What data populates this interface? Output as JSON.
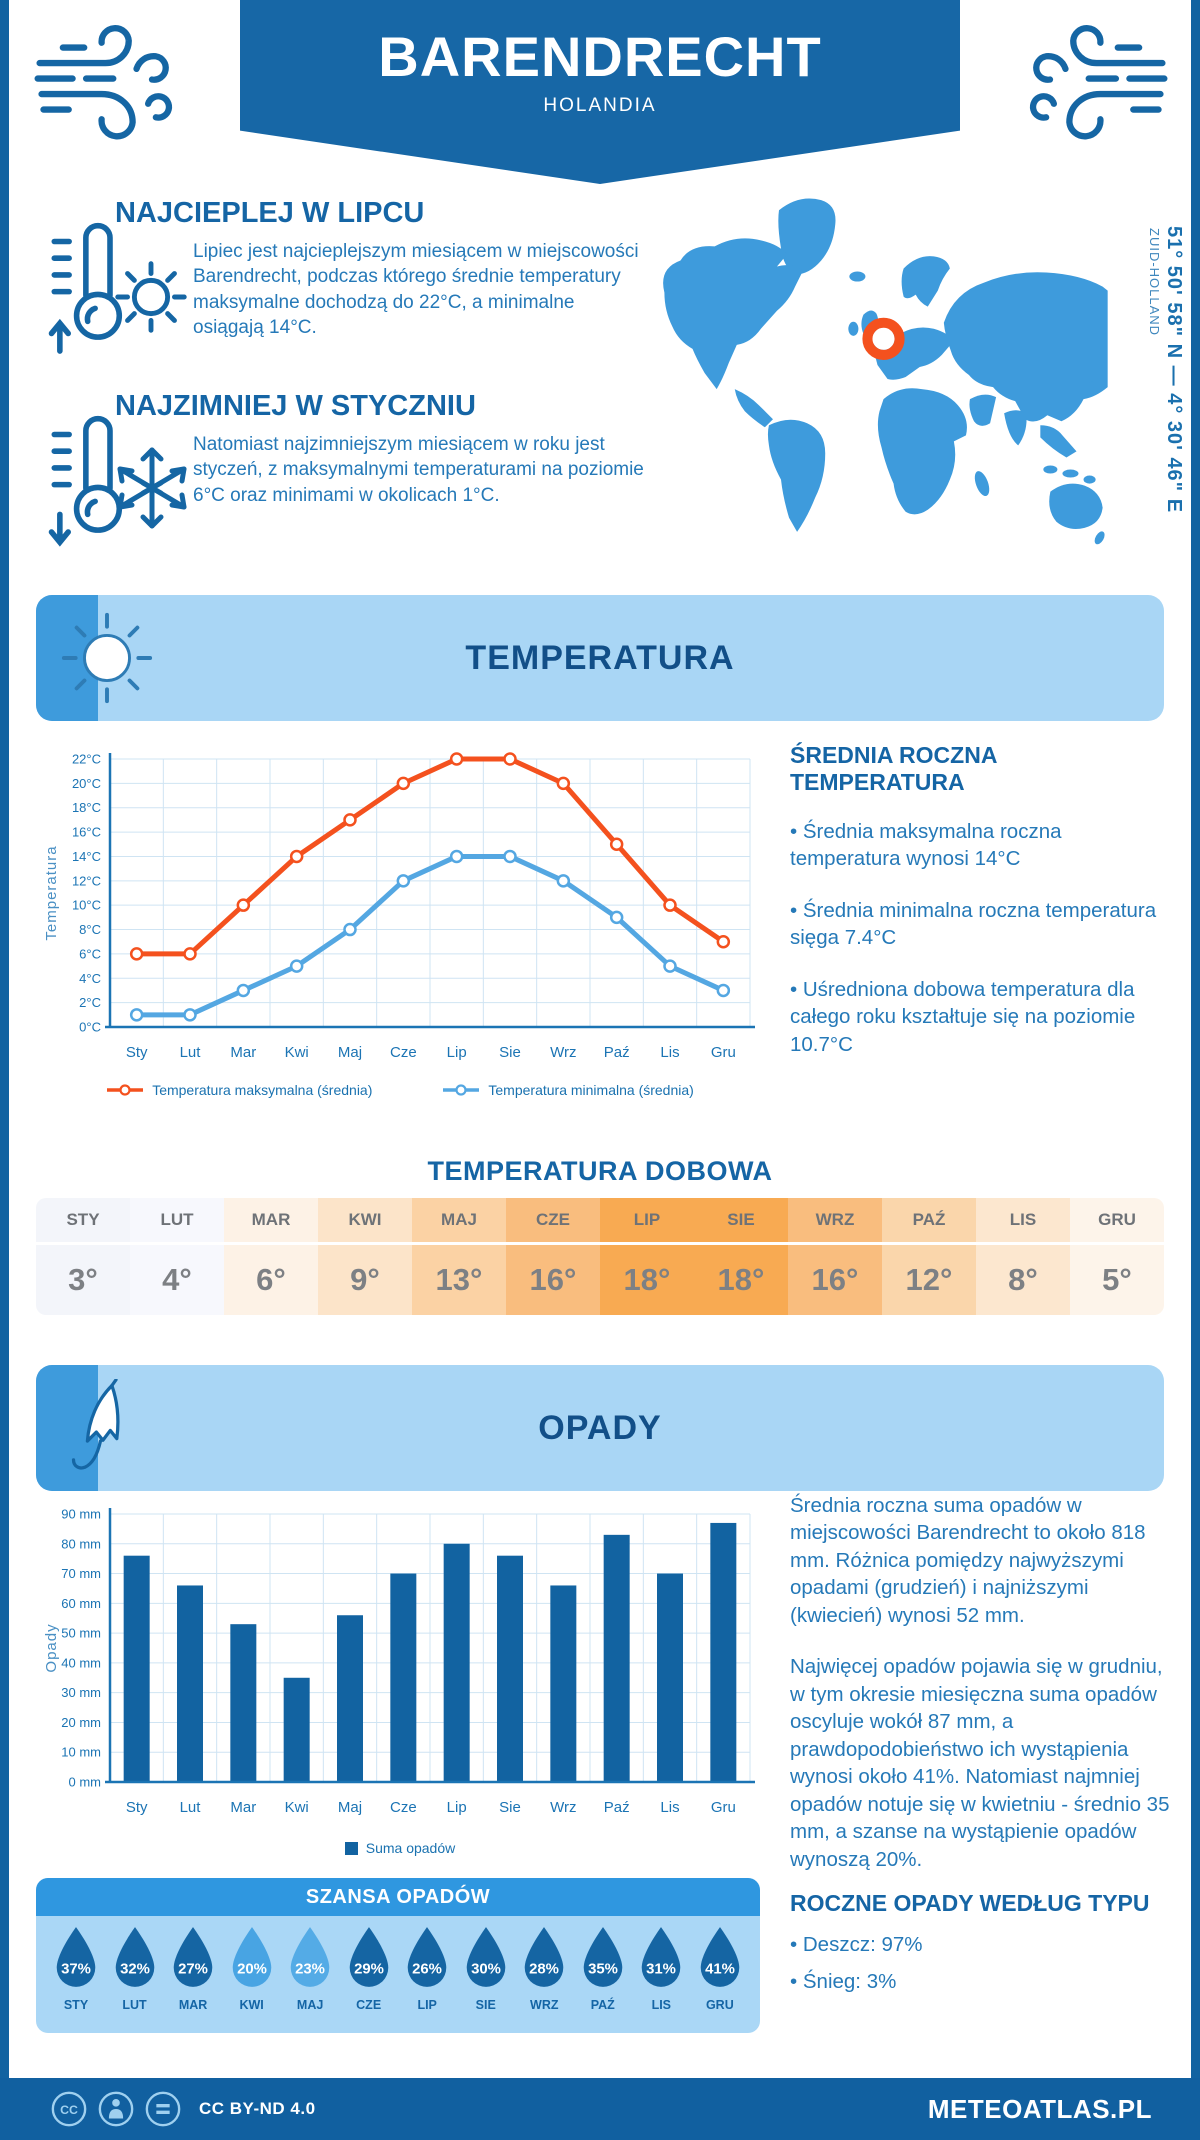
{
  "header": {
    "title": "BARENDRECHT",
    "subtitle": "HOLANDIA"
  },
  "location": {
    "coordinates": "51° 50' 58\" N — 4° 30' 46\" E",
    "region": "ZUID-HOLLAND",
    "marker_color": "#f4511e",
    "map_color": "#3e9bdc"
  },
  "highlights": {
    "warmest": {
      "title": "NAJCIEPLEJ W LIPCU",
      "text": "Lipiec jest najcieplejszym miesiącem w miejscowości Barendrecht, podczas którego średnie temperatury maksymalne dochodzą do 22°C, a minimalne osiągają 14°C."
    },
    "coldest": {
      "title": "NAJZIMNIEJ W STYCZNIU",
      "text": "Natomiast najzimniejszym miesiącem w roku jest styczeń, z maksymalnymi temperaturami na poziomie 6°C oraz minimami w okolicach 1°C."
    }
  },
  "temperature_section": {
    "title": "TEMPERATURA",
    "sidebar": {
      "heading": "ŚREDNIA ROCZNA TEMPERATURA",
      "bullets": [
        "• Średnia maksymalna roczna temperatura wynosi 14°C",
        "• Średnia minimalna roczna temperatura sięga 7.4°C",
        "• Uśredniona dobowa temperatura dla całego roku kształtuje się na poziomie 10.7°C"
      ]
    },
    "daily": {
      "title": "TEMPERATURA DOBOWA",
      "months": [
        "STY",
        "LUT",
        "MAR",
        "KWI",
        "MAJ",
        "CZE",
        "LIP",
        "SIE",
        "WRZ",
        "PAŹ",
        "LIS",
        "GRU"
      ],
      "values": [
        "3°",
        "4°",
        "6°",
        "9°",
        "13°",
        "16°",
        "18°",
        "18°",
        "16°",
        "12°",
        "8°",
        "5°"
      ],
      "colors": [
        "#f3f5fa",
        "#f7f8fd",
        "#fdf2e6",
        "#fce4c9",
        "#fbd2a4",
        "#f9bd7e",
        "#f8aa52",
        "#f8aa52",
        "#f9bd7e",
        "#fad6ab",
        "#fce7cf",
        "#fdf4ea"
      ]
    }
  },
  "precipitation_section": {
    "title": "OPADY",
    "paragraphs": [
      "Średnia roczna suma opadów w miejscowości Barendrecht to około 818 mm. Różnica pomiędzy najwyższymi opadami (grudzień) i najniższymi (kwiecień) wynosi 52 mm.",
      "Najwięcej opadów pojawia się w grudniu, w tym okresie miesięczna suma opadów oscyluje wokół 87 mm, a prawdopodobieństwo ich wystąpienia wynosi około 41%. Natomiast najmniej opadów notuje się w kwietniu - średnio 35 mm, a szanse na wystąpienie opadów wynoszą 20%."
    ],
    "chance": {
      "title": "SZANSA OPADÓW",
      "months": [
        "STY",
        "LUT",
        "MAR",
        "KWI",
        "MAJ",
        "CZE",
        "LIP",
        "SIE",
        "WRZ",
        "PAŹ",
        "LIS",
        "GRU"
      ],
      "values": [
        "37%",
        "32%",
        "27%",
        "20%",
        "23%",
        "29%",
        "26%",
        "30%",
        "28%",
        "35%",
        "31%",
        "41%"
      ],
      "colors": [
        "#1565a3",
        "#1565a3",
        "#1565a3",
        "#48a4e3",
        "#54abe6",
        "#1565a3",
        "#1565a3",
        "#1565a3",
        "#1565a3",
        "#1565a3",
        "#1565a3",
        "#1565a3"
      ]
    },
    "type": {
      "heading": "ROCZNE OPADY WEDŁUG TYPU",
      "bullets": [
        "• Deszcz: 97%",
        "• Śnieg: 3%"
      ]
    }
  },
  "chart_data": [
    {
      "type": "line",
      "x": [
        "Sty",
        "Lut",
        "Mar",
        "Kwi",
        "Maj",
        "Cze",
        "Lip",
        "Sie",
        "Wrz",
        "Paź",
        "Lis",
        "Gru"
      ],
      "series": [
        {
          "name": "Temperatura maksymalna (średnia)",
          "color": "#f4511e",
          "values": [
            6,
            6,
            10,
            14,
            17,
            20,
            22,
            22,
            20,
            15,
            10,
            7
          ]
        },
        {
          "name": "Temperatura minimalna (średnia)",
          "color": "#54a7e2",
          "values": [
            1,
            1,
            3,
            5,
            8,
            12,
            14,
            14,
            12,
            9,
            5,
            3
          ]
        }
      ],
      "ylabel": "Temperatura",
      "ylim": [
        0,
        22
      ],
      "ytick_step": 2,
      "ytick_suffix": "°C",
      "grid": true,
      "legend_position": "bottom"
    },
    {
      "type": "bar",
      "x": [
        "Sty",
        "Lut",
        "Mar",
        "Kwi",
        "Maj",
        "Cze",
        "Lip",
        "Sie",
        "Wrz",
        "Paź",
        "Lis",
        "Gru"
      ],
      "series": [
        {
          "name": "Suma opadów",
          "color": "#1263a1",
          "values": [
            76,
            66,
            53,
            35,
            56,
            70,
            80,
            76,
            66,
            83,
            70,
            87
          ]
        }
      ],
      "ylabel": "Opady",
      "ylim": [
        0,
        90
      ],
      "ytick_step": 10,
      "ytick_suffix": " mm",
      "grid": true,
      "legend_position": "bottom"
    }
  ],
  "footer": {
    "license": "CC BY-ND 4.0",
    "brand": "METEOATLAS.PL"
  }
}
